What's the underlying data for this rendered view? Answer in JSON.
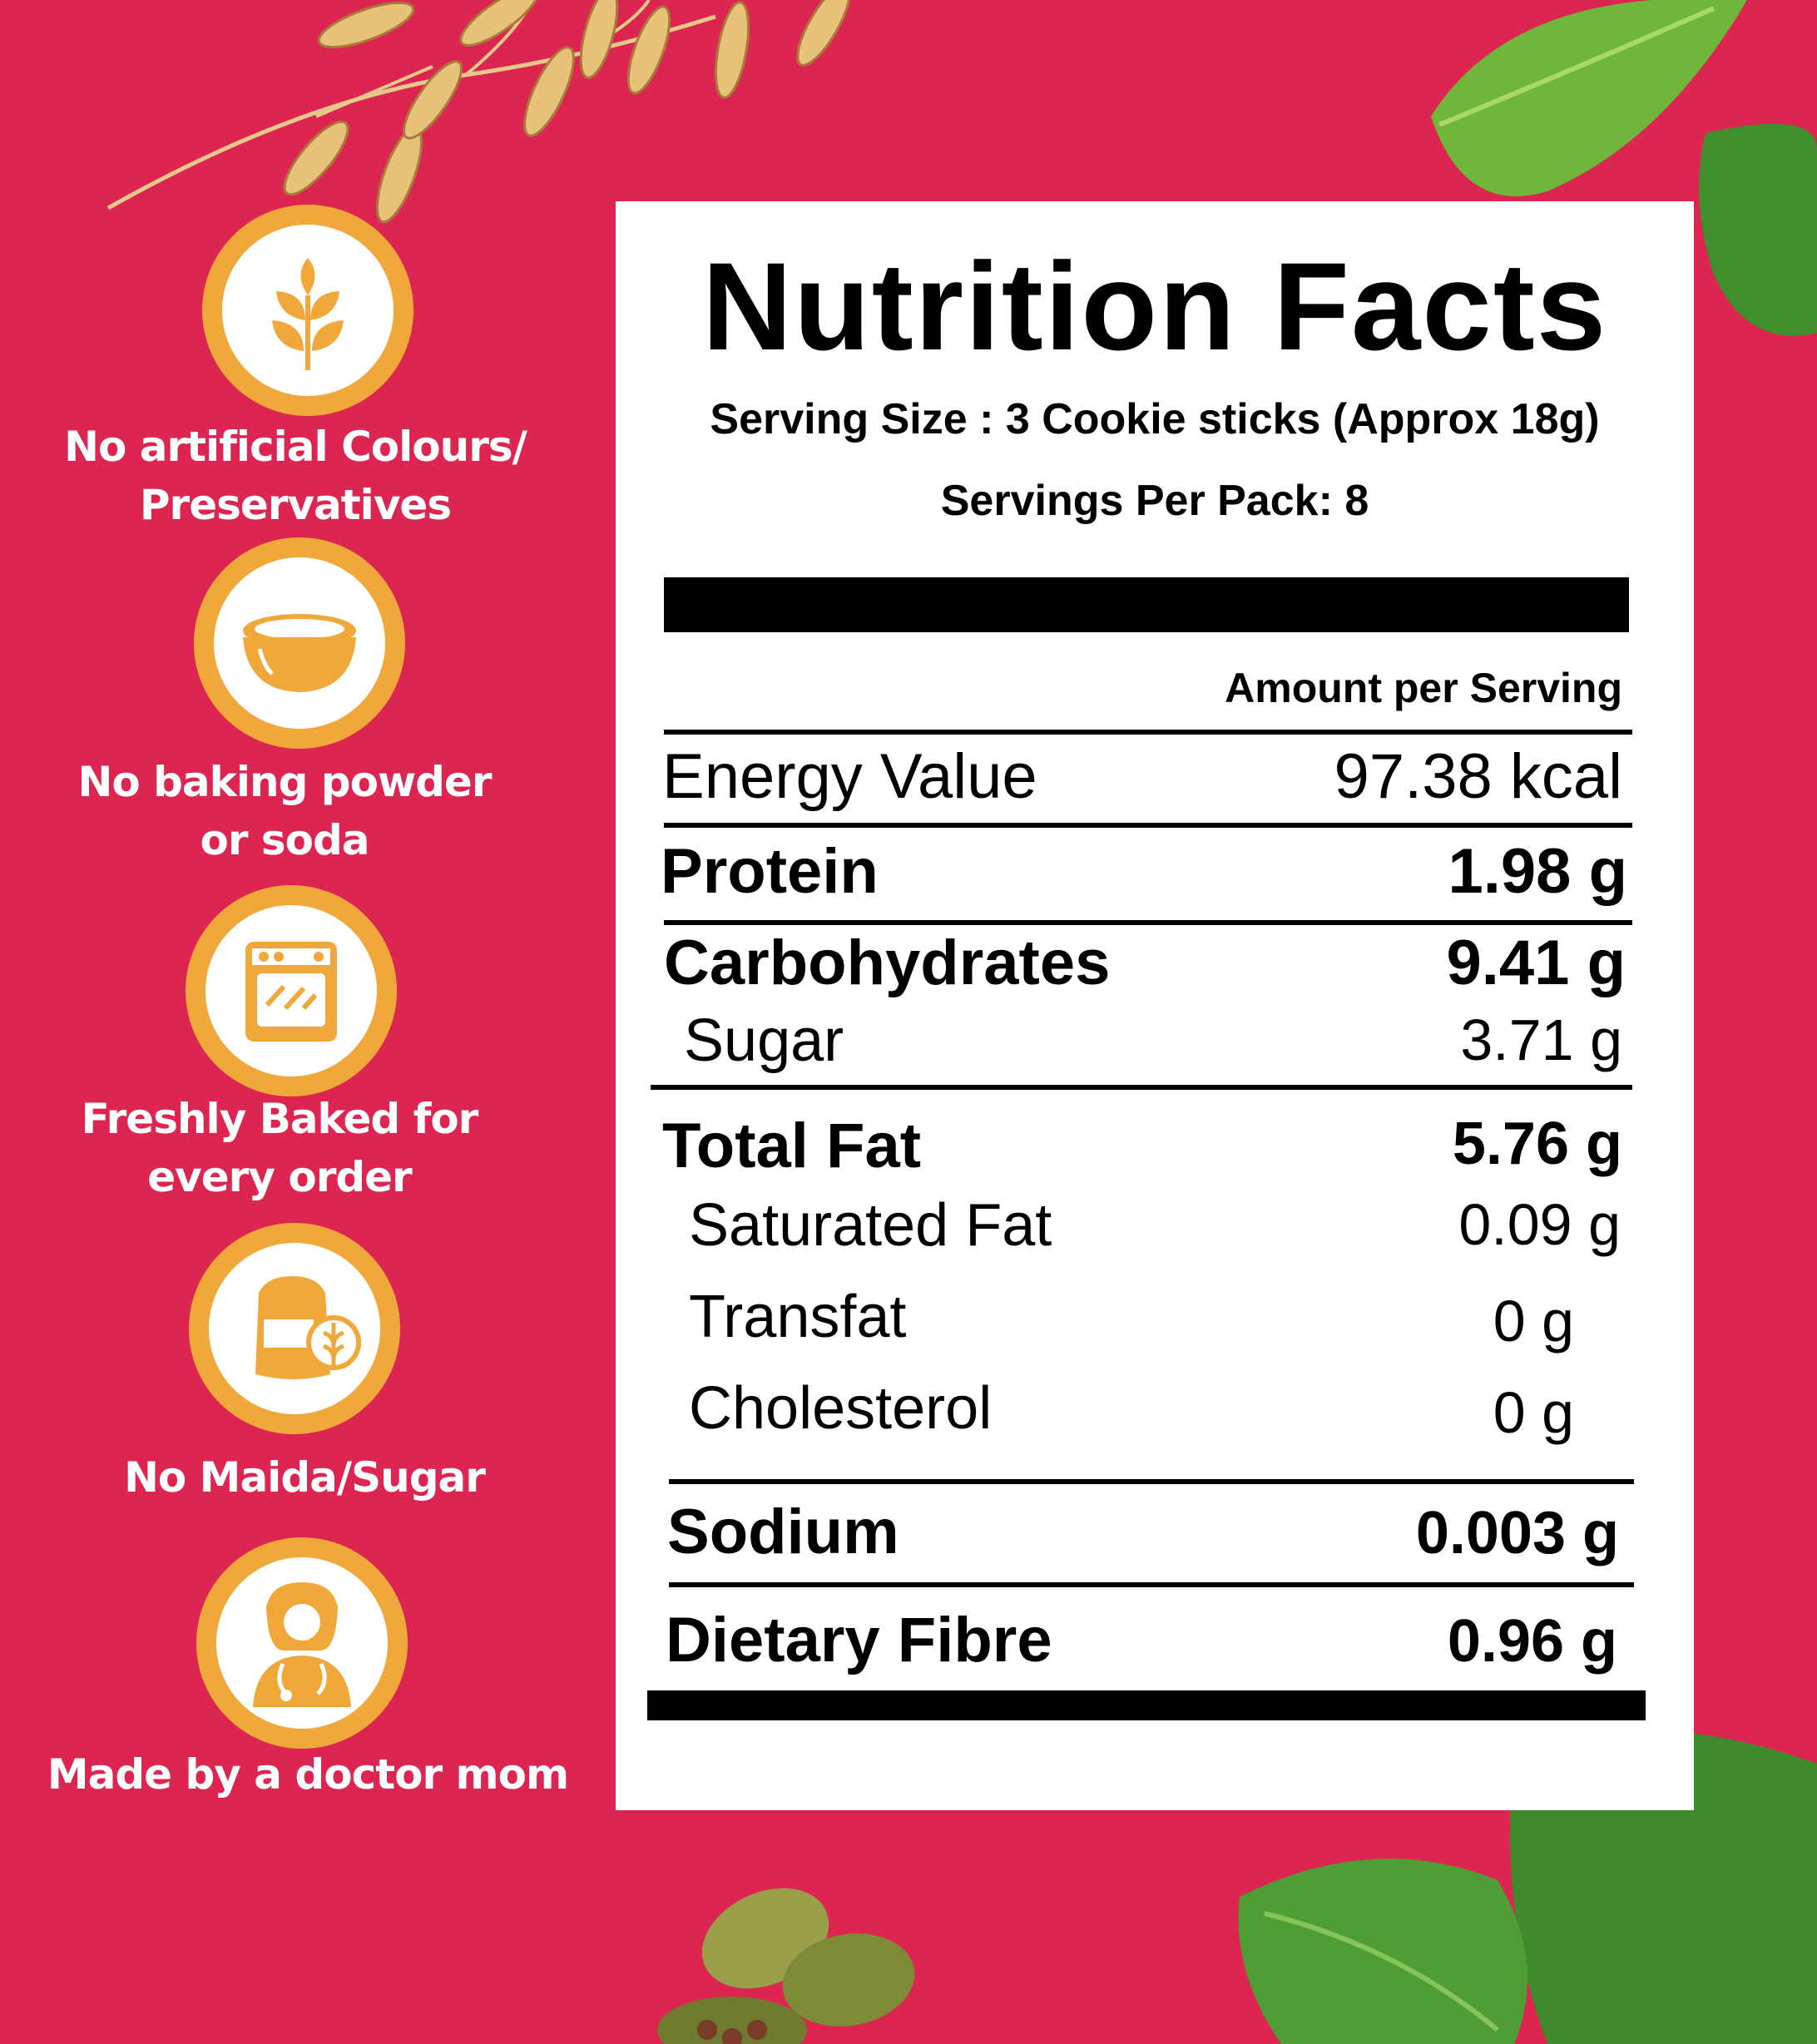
{
  "colors": {
    "background": "#dc2550",
    "badge_ring": "#f0a83a",
    "card": "#ffffff",
    "text_dark": "#000000"
  },
  "features": [
    {
      "icon": "wheat-icon",
      "line1": "No artificial Colours/",
      "line2": "Preservatives"
    },
    {
      "icon": "bowl-icon",
      "line1": "No baking powder",
      "line2": "or soda"
    },
    {
      "icon": "oven-icon",
      "line1": "Freshly Baked for",
      "line2": "every order"
    },
    {
      "icon": "flour-sack-icon",
      "line1": "No Maida/Sugar",
      "line2": ""
    },
    {
      "icon": "doctor-icon",
      "line1": "Made by a doctor mom",
      "line2": ""
    }
  ],
  "nutrition": {
    "title": "Nutrition Facts",
    "serving_size": "Serving Size : 3 Cookie sticks (Approx 18g)",
    "servings_per_pack": "Servings Per Pack: 8",
    "amount_header": "Amount per Serving",
    "rows": [
      {
        "label": "Energy Value",
        "value": "97.38 kcal"
      },
      {
        "label": "Protein",
        "value": "1.98 g"
      },
      {
        "label": "Carbohydrates",
        "value": "9.41 g"
      },
      {
        "label": "Sugar",
        "value": "3.71 g"
      },
      {
        "label": "Total Fat",
        "value": "5.76 g"
      },
      {
        "label": "Saturated Fat",
        "value": "0.09 g"
      },
      {
        "label": "Transfat",
        "value": "0 g"
      },
      {
        "label": "Cholesterol",
        "value": "0 g"
      },
      {
        "label": "Sodium",
        "value": "0.003 g"
      },
      {
        "label": "Dietary Fibre",
        "value": "0.96 g"
      }
    ]
  }
}
